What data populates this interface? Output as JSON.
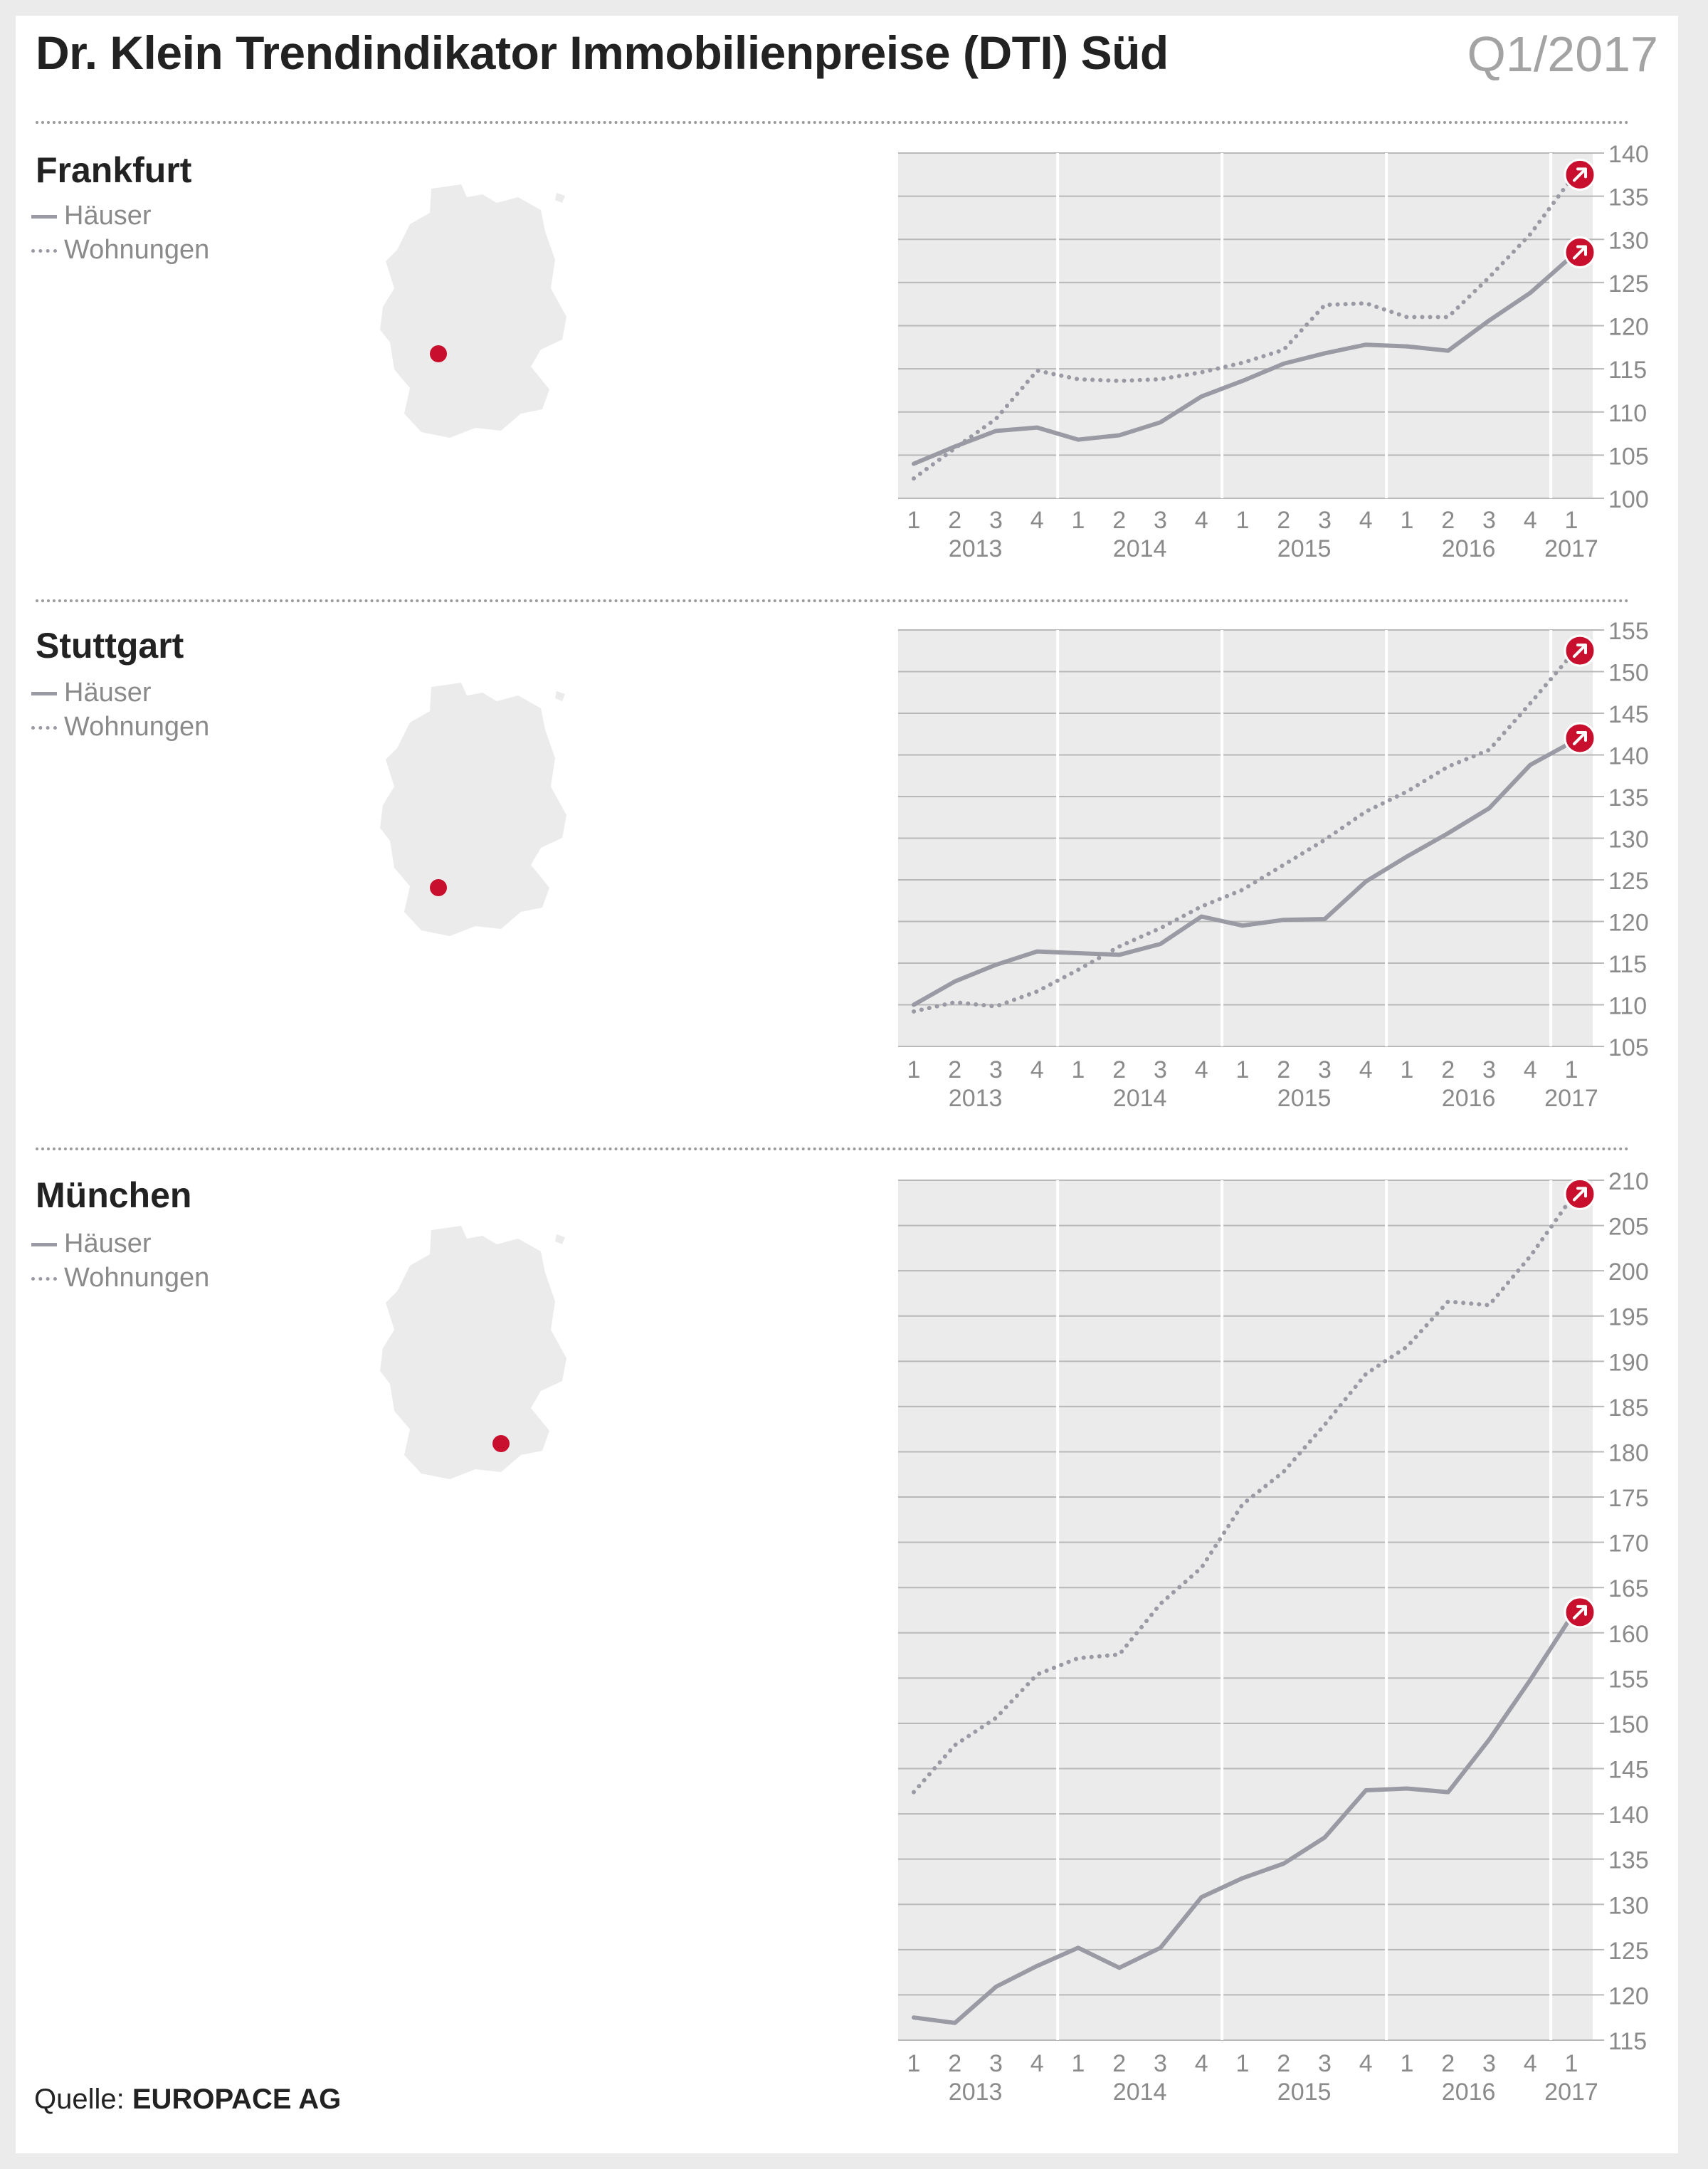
{
  "header": {
    "title": "Dr. Klein Trendindikator Immobilienpreise (DTI) Süd",
    "period": "Q1/2017"
  },
  "legend": {
    "houses": "Häuser",
    "apartments": "Wohnungen"
  },
  "source": {
    "label": "Quelle:",
    "name": "EUROPACE AG"
  },
  "colors": {
    "line": "#9a9aa4",
    "plot_bg": "#ebebeb",
    "marker": "#c8102e",
    "text": "#222222",
    "tick_text": "#8a8a8a"
  },
  "chart_data": [
    {
      "type": "line",
      "title": "Frankfurt",
      "quarters": [
        "1",
        "2",
        "3",
        "4",
        "1",
        "2",
        "3",
        "4",
        "1",
        "2",
        "3",
        "4",
        "1",
        "2",
        "3",
        "4",
        "1"
      ],
      "years": [
        "2013",
        "2014",
        "2015",
        "2016",
        "2017"
      ],
      "ylim": [
        100,
        140
      ],
      "yticks": [
        100,
        105,
        110,
        115,
        120,
        125,
        130,
        135,
        140
      ],
      "series": [
        {
          "name": "Häuser",
          "style": "solid",
          "values": [
            104.0,
            106.0,
            107.8,
            108.2,
            106.8,
            107.3,
            108.8,
            111.8,
            113.6,
            115.6,
            116.8,
            117.8,
            117.6,
            117.1,
            120.6,
            123.8,
            128.0
          ]
        },
        {
          "name": "Wohnungen",
          "style": "dotted",
          "values": [
            102.3,
            105.8,
            109.2,
            114.8,
            113.8,
            113.6,
            113.8,
            114.6,
            115.7,
            117.2,
            122.4,
            122.6,
            121.0,
            121.0,
            125.6,
            130.6,
            137.0
          ]
        }
      ],
      "grid": true,
      "end_markers": "arrow-up-right-icon"
    },
    {
      "type": "line",
      "title": "Stuttgart",
      "quarters": [
        "1",
        "2",
        "3",
        "4",
        "1",
        "2",
        "3",
        "4",
        "1",
        "2",
        "3",
        "4",
        "1",
        "2",
        "3",
        "4",
        "1"
      ],
      "years": [
        "2013",
        "2014",
        "2015",
        "2016",
        "2017"
      ],
      "ylim": [
        105,
        155
      ],
      "yticks": [
        105,
        110,
        115,
        120,
        125,
        130,
        135,
        140,
        145,
        150,
        155
      ],
      "series": [
        {
          "name": "Häuser",
          "style": "solid",
          "values": [
            110.0,
            112.8,
            114.8,
            116.4,
            116.2,
            116.0,
            117.3,
            120.6,
            119.5,
            120.2,
            120.3,
            124.8,
            127.8,
            130.6,
            133.6,
            138.8,
            141.5
          ]
        },
        {
          "name": "Wohnungen",
          "style": "dotted",
          "values": [
            109.2,
            110.3,
            109.8,
            111.6,
            114.2,
            117.0,
            119.2,
            121.8,
            123.8,
            126.8,
            129.8,
            133.2,
            135.6,
            138.6,
            140.6,
            146.2,
            152.0
          ]
        }
      ],
      "grid": true,
      "end_markers": "arrow-up-right-icon"
    },
    {
      "type": "line",
      "title": "München",
      "quarters": [
        "1",
        "2",
        "3",
        "4",
        "1",
        "2",
        "3",
        "4",
        "1",
        "2",
        "3",
        "4",
        "1",
        "2",
        "3",
        "4",
        "1"
      ],
      "years": [
        "2013",
        "2014",
        "2015",
        "2016",
        "2017"
      ],
      "ylim": [
        115,
        210
      ],
      "yticks": [
        115,
        120,
        125,
        130,
        135,
        140,
        145,
        150,
        155,
        160,
        165,
        170,
        175,
        180,
        185,
        190,
        195,
        200,
        205,
        210
      ],
      "series": [
        {
          "name": "Häuser",
          "style": "solid",
          "values": [
            117.5,
            116.9,
            120.9,
            123.2,
            125.2,
            123.0,
            125.2,
            130.8,
            132.9,
            134.5,
            137.4,
            142.6,
            142.8,
            142.4,
            148.2,
            154.8,
            161.8
          ]
        },
        {
          "name": "Wohnungen",
          "style": "dotted",
          "values": [
            142.4,
            147.6,
            150.6,
            155.4,
            157.2,
            157.6,
            163.2,
            167.2,
            174.2,
            177.8,
            183.0,
            188.6,
            191.6,
            196.6,
            196.2,
            201.6,
            208.0
          ]
        }
      ],
      "grid": true,
      "end_markers": "arrow-up-right-icon"
    }
  ]
}
